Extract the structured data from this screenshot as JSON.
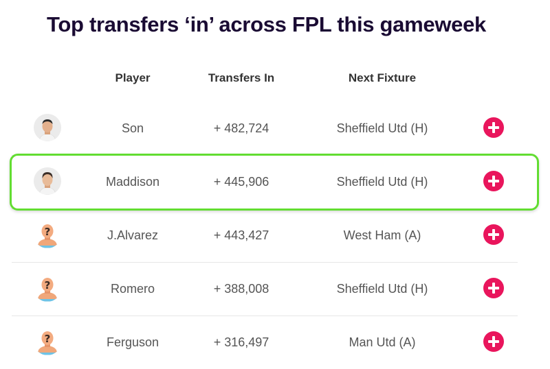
{
  "title": "Top transfers ‘in’ across FPL this gameweek",
  "columns": {
    "player": "Player",
    "transfers_in": "Transfers In",
    "next_fixture": "Next Fixture"
  },
  "rows": [
    {
      "player": "Son",
      "transfers_in": "+ 482,724",
      "next_fixture": "Sheffield Utd (H)",
      "avatar": "player-photo"
    },
    {
      "player": "Maddison",
      "transfers_in": "+ 445,906",
      "next_fixture": "Sheffield Utd (H)",
      "avatar": "player-photo",
      "highlighted": true
    },
    {
      "player": "J.Alvarez",
      "transfers_in": "+ 443,427",
      "next_fixture": "West Ham (A)",
      "avatar": "unknown-player"
    },
    {
      "player": "Romero",
      "transfers_in": "+ 388,008",
      "next_fixture": "Sheffield Utd (H)",
      "avatar": "unknown-player"
    },
    {
      "player": "Ferguson",
      "transfers_in": "+ 316,497",
      "next_fixture": "Man Utd (A)",
      "avatar": "unknown-player"
    }
  ],
  "colors": {
    "add_button": "#e9155c",
    "highlight_border": "#62dd31",
    "title": "#1a0b33"
  },
  "icons": {
    "add": "plus-circle-icon",
    "unknown_player": "question-mark-bust-icon"
  }
}
